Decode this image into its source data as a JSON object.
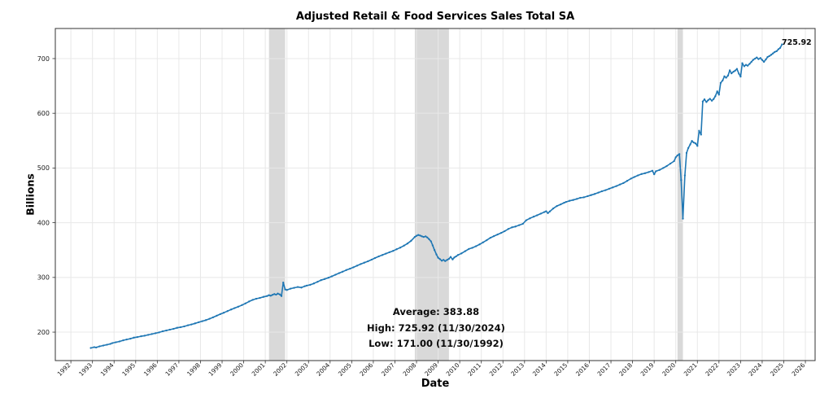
{
  "chart_data": {
    "type": "line",
    "title": "Adjusted Retail & Food Services Sales Total SA",
    "xlabel": "Date",
    "ylabel": "Billions",
    "end_label": "725.92",
    "stats": {
      "average": "Average: 383.88",
      "high": "High: 725.92 (11/30/2024)",
      "low": "Low: 171.00 (11/30/1992)"
    },
    "x_ticks": [
      1992,
      1993,
      1994,
      1995,
      1996,
      1997,
      1998,
      1999,
      2000,
      2001,
      2002,
      2003,
      2004,
      2005,
      2006,
      2007,
      2008,
      2009,
      2010,
      2011,
      2012,
      2013,
      2014,
      2015,
      2016,
      2017,
      2018,
      2019,
      2020,
      2021,
      2022,
      2023,
      2024,
      2025,
      2026
    ],
    "y_ticks": [
      200,
      300,
      400,
      500,
      600,
      700
    ],
    "xlim": [
      1991.28,
      2026.45
    ],
    "ylim": [
      148,
      755
    ],
    "grid": true,
    "legend": "none",
    "colors": {
      "line": "#1f77b4",
      "recession_band": "#d9d9d9",
      "grid": "#e8e8e8",
      "spine": "#333333",
      "tick": "#333333"
    },
    "recession_bands": [
      [
        2001.17,
        2001.92
      ],
      [
        2007.92,
        2009.5
      ],
      [
        2020.08,
        2020.33
      ]
    ],
    "series": [
      {
        "name": "Adjusted Retail & Food Services Sales Total SA",
        "points": [
          [
            1992.92,
            171.0
          ],
          [
            1993.08,
            172.5
          ],
          [
            1993.17,
            172.0
          ],
          [
            1993.33,
            174.0
          ],
          [
            1993.5,
            175.5
          ],
          [
            1993.67,
            177.0
          ],
          [
            1993.83,
            178.5
          ],
          [
            1993.92,
            180.0
          ],
          [
            1994.08,
            181.5
          ],
          [
            1994.25,
            183.0
          ],
          [
            1994.42,
            185.0
          ],
          [
            1994.58,
            186.5
          ],
          [
            1994.75,
            188.0
          ],
          [
            1994.92,
            190.0
          ],
          [
            1995.08,
            191.0
          ],
          [
            1995.25,
            192.5
          ],
          [
            1995.42,
            193.5
          ],
          [
            1995.58,
            195.0
          ],
          [
            1995.75,
            196.5
          ],
          [
            1995.92,
            198.0
          ],
          [
            1996.08,
            199.5
          ],
          [
            1996.25,
            201.5
          ],
          [
            1996.42,
            203.0
          ],
          [
            1996.58,
            204.5
          ],
          [
            1996.75,
            206.0
          ],
          [
            1996.92,
            208.0
          ],
          [
            1997.08,
            209.0
          ],
          [
            1997.25,
            210.5
          ],
          [
            1997.42,
            212.5
          ],
          [
            1997.58,
            214.0
          ],
          [
            1997.75,
            216.0
          ],
          [
            1997.92,
            218.0
          ],
          [
            1998.08,
            220.0
          ],
          [
            1998.25,
            222.0
          ],
          [
            1998.42,
            224.5
          ],
          [
            1998.58,
            227.0
          ],
          [
            1998.75,
            230.0
          ],
          [
            1998.92,
            233.0
          ],
          [
            1999.08,
            235.5
          ],
          [
            1999.25,
            238.5
          ],
          [
            1999.42,
            241.5
          ],
          [
            1999.58,
            244.0
          ],
          [
            1999.75,
            246.5
          ],
          [
            1999.92,
            249.5
          ],
          [
            2000.08,
            252.5
          ],
          [
            2000.25,
            256.0
          ],
          [
            2000.42,
            259.0
          ],
          [
            2000.58,
            261.0
          ],
          [
            2000.75,
            262.5
          ],
          [
            2000.92,
            264.5
          ],
          [
            2001.08,
            266.0
          ],
          [
            2001.17,
            267.5
          ],
          [
            2001.25,
            266.5
          ],
          [
            2001.33,
            268.0
          ],
          [
            2001.42,
            269.5
          ],
          [
            2001.5,
            268.5
          ],
          [
            2001.58,
            270.5
          ],
          [
            2001.67,
            269.0
          ],
          [
            2001.75,
            266.0
          ],
          [
            2001.83,
            290.5
          ],
          [
            2001.92,
            278.0
          ],
          [
            2002.0,
            277.0
          ],
          [
            2002.17,
            279.5
          ],
          [
            2002.33,
            281.0
          ],
          [
            2002.5,
            282.5
          ],
          [
            2002.67,
            281.5
          ],
          [
            2002.83,
            284.0
          ],
          [
            2002.92,
            285.0
          ],
          [
            2003.08,
            286.5
          ],
          [
            2003.25,
            289.0
          ],
          [
            2003.42,
            292.0
          ],
          [
            2003.58,
            295.0
          ],
          [
            2003.75,
            297.0
          ],
          [
            2003.92,
            299.5
          ],
          [
            2004.08,
            302.0
          ],
          [
            2004.25,
            305.0
          ],
          [
            2004.42,
            308.0
          ],
          [
            2004.58,
            310.5
          ],
          [
            2004.75,
            313.5
          ],
          [
            2004.92,
            316.0
          ],
          [
            2005.08,
            318.5
          ],
          [
            2005.25,
            321.5
          ],
          [
            2005.42,
            324.5
          ],
          [
            2005.58,
            327.0
          ],
          [
            2005.75,
            329.5
          ],
          [
            2005.92,
            332.5
          ],
          [
            2006.08,
            335.5
          ],
          [
            2006.25,
            338.5
          ],
          [
            2006.42,
            341.0
          ],
          [
            2006.58,
            343.5
          ],
          [
            2006.75,
            346.0
          ],
          [
            2006.92,
            348.5
          ],
          [
            2007.08,
            351.5
          ],
          [
            2007.25,
            354.5
          ],
          [
            2007.42,
            358.0
          ],
          [
            2007.58,
            362.0
          ],
          [
            2007.75,
            367.0
          ],
          [
            2007.92,
            374.0
          ],
          [
            2008.0,
            376.0
          ],
          [
            2008.08,
            377.5
          ],
          [
            2008.17,
            376.5
          ],
          [
            2008.25,
            375.0
          ],
          [
            2008.33,
            374.0
          ],
          [
            2008.42,
            375.0
          ],
          [
            2008.5,
            373.0
          ],
          [
            2008.58,
            370.0
          ],
          [
            2008.67,
            366.0
          ],
          [
            2008.75,
            358.5
          ],
          [
            2008.83,
            350.0
          ],
          [
            2008.92,
            342.0
          ],
          [
            2009.0,
            336.0
          ],
          [
            2009.08,
            333.5
          ],
          [
            2009.17,
            330.5
          ],
          [
            2009.25,
            332.0
          ],
          [
            2009.33,
            330.0
          ],
          [
            2009.42,
            332.0
          ],
          [
            2009.5,
            334.0
          ],
          [
            2009.58,
            337.5
          ],
          [
            2009.67,
            333.0
          ],
          [
            2009.75,
            336.5
          ],
          [
            2009.83,
            338.5
          ],
          [
            2009.92,
            341.0
          ],
          [
            2010.08,
            344.0
          ],
          [
            2010.25,
            348.0
          ],
          [
            2010.42,
            352.0
          ],
          [
            2010.58,
            354.0
          ],
          [
            2010.75,
            357.0
          ],
          [
            2010.92,
            360.5
          ],
          [
            2011.08,
            364.0
          ],
          [
            2011.25,
            368.0
          ],
          [
            2011.42,
            372.5
          ],
          [
            2011.58,
            375.5
          ],
          [
            2011.75,
            378.5
          ],
          [
            2011.92,
            381.5
          ],
          [
            2012.08,
            384.5
          ],
          [
            2012.25,
            388.5
          ],
          [
            2012.42,
            391.5
          ],
          [
            2012.58,
            393.0
          ],
          [
            2012.75,
            395.5
          ],
          [
            2012.92,
            398.0
          ],
          [
            2013.08,
            404.5
          ],
          [
            2013.25,
            408.0
          ],
          [
            2013.42,
            411.0
          ],
          [
            2013.58,
            413.5
          ],
          [
            2013.75,
            416.5
          ],
          [
            2013.92,
            419.5
          ],
          [
            2014.0,
            421.0
          ],
          [
            2014.08,
            417.5
          ],
          [
            2014.17,
            420.5
          ],
          [
            2014.33,
            426.0
          ],
          [
            2014.5,
            430.5
          ],
          [
            2014.67,
            433.5
          ],
          [
            2014.83,
            436.5
          ],
          [
            2014.92,
            438.0
          ],
          [
            2015.08,
            440.0
          ],
          [
            2015.25,
            441.5
          ],
          [
            2015.42,
            443.5
          ],
          [
            2015.58,
            445.5
          ],
          [
            2015.75,
            446.5
          ],
          [
            2015.92,
            448.5
          ],
          [
            2016.08,
            450.5
          ],
          [
            2016.25,
            452.5
          ],
          [
            2016.42,
            455.0
          ],
          [
            2016.58,
            457.5
          ],
          [
            2016.75,
            459.5
          ],
          [
            2016.92,
            462.0
          ],
          [
            2017.08,
            464.5
          ],
          [
            2017.25,
            467.0
          ],
          [
            2017.42,
            470.0
          ],
          [
            2017.58,
            472.5
          ],
          [
            2017.75,
            476.5
          ],
          [
            2017.92,
            480.5
          ],
          [
            2018.08,
            483.5
          ],
          [
            2018.25,
            486.5
          ],
          [
            2018.42,
            489.0
          ],
          [
            2018.58,
            490.5
          ],
          [
            2018.75,
            492.5
          ],
          [
            2018.92,
            495.0
          ],
          [
            2019.0,
            488.5
          ],
          [
            2019.08,
            494.0
          ],
          [
            2019.25,
            496.5
          ],
          [
            2019.42,
            500.0
          ],
          [
            2019.58,
            503.5
          ],
          [
            2019.75,
            508.0
          ],
          [
            2019.92,
            512.5
          ],
          [
            2020.0,
            519.5
          ],
          [
            2020.08,
            523.0
          ],
          [
            2020.17,
            525.5
          ],
          [
            2020.25,
            478.0
          ],
          [
            2020.33,
            407.5
          ],
          [
            2020.42,
            486.5
          ],
          [
            2020.5,
            527.5
          ],
          [
            2020.58,
            536.5
          ],
          [
            2020.67,
            543.0
          ],
          [
            2020.75,
            549.5
          ],
          [
            2020.83,
            546.5
          ],
          [
            2020.92,
            545.0
          ],
          [
            2021.0,
            540.5
          ],
          [
            2021.08,
            568.0
          ],
          [
            2021.17,
            561.0
          ],
          [
            2021.25,
            621.5
          ],
          [
            2021.33,
            625.5
          ],
          [
            2021.42,
            620.5
          ],
          [
            2021.5,
            624.0
          ],
          [
            2021.58,
            626.5
          ],
          [
            2021.67,
            623.0
          ],
          [
            2021.75,
            626.0
          ],
          [
            2021.83,
            631.0
          ],
          [
            2021.92,
            640.0
          ],
          [
            2022.0,
            634.0
          ],
          [
            2022.08,
            655.5
          ],
          [
            2022.17,
            660.0
          ],
          [
            2022.25,
            667.5
          ],
          [
            2022.33,
            665.0
          ],
          [
            2022.42,
            669.0
          ],
          [
            2022.5,
            678.5
          ],
          [
            2022.58,
            673.0
          ],
          [
            2022.67,
            676.0
          ],
          [
            2022.75,
            678.0
          ],
          [
            2022.83,
            681.0
          ],
          [
            2022.92,
            672.5
          ],
          [
            2023.0,
            667.0
          ],
          [
            2023.08,
            691.5
          ],
          [
            2023.17,
            686.0
          ],
          [
            2023.25,
            688.5
          ],
          [
            2023.33,
            687.0
          ],
          [
            2023.42,
            690.5
          ],
          [
            2023.5,
            694.0
          ],
          [
            2023.58,
            697.5
          ],
          [
            2023.67,
            700.0
          ],
          [
            2023.75,
            702.0
          ],
          [
            2023.83,
            699.0
          ],
          [
            2023.92,
            701.0
          ],
          [
            2024.0,
            697.5
          ],
          [
            2024.08,
            694.0
          ],
          [
            2024.17,
            698.5
          ],
          [
            2024.25,
            703.0
          ],
          [
            2024.33,
            704.5
          ],
          [
            2024.42,
            707.0
          ],
          [
            2024.5,
            709.5
          ],
          [
            2024.58,
            712.0
          ],
          [
            2024.67,
            713.5
          ],
          [
            2024.75,
            717.0
          ],
          [
            2024.83,
            719.5
          ],
          [
            2024.92,
            725.92
          ]
        ]
      }
    ]
  }
}
